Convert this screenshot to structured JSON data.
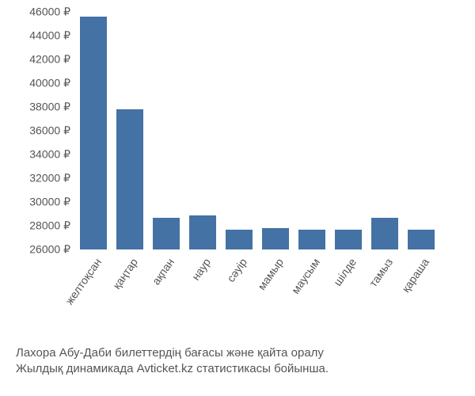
{
  "chart": {
    "type": "bar",
    "background_color": "#ffffff",
    "bar_color": "#4472a4",
    "axis_text_color": "#555555",
    "caption_color": "#555555",
    "tick_fontsize": 14,
    "xlabel_fontsize": 14,
    "caption_fontsize": 15,
    "xlabel_rotation_deg": -55,
    "bar_width_ratio": 0.74,
    "ylim": [
      26000,
      46000
    ],
    "ytick_step": 2000,
    "currency_suffix": " ₽",
    "yticks": [
      26000,
      28000,
      30000,
      32000,
      34000,
      36000,
      38000,
      40000,
      42000,
      44000,
      46000
    ],
    "categories": [
      "желтоқсан",
      "қаңтар",
      "ақпан",
      "наур",
      "сәуір",
      "мамыр",
      "маусым",
      "шілде",
      "тамыз",
      "қараша"
    ],
    "values": [
      45600,
      37800,
      28700,
      28900,
      27700,
      27800,
      27700,
      27700,
      28700,
      27700
    ]
  },
  "caption": {
    "line1": "Лахора Абу-Даби билеттердің бағасы және қайта оралу",
    "line2": "Жылдық динамикада Avticket.kz статистикасы бойынша."
  }
}
